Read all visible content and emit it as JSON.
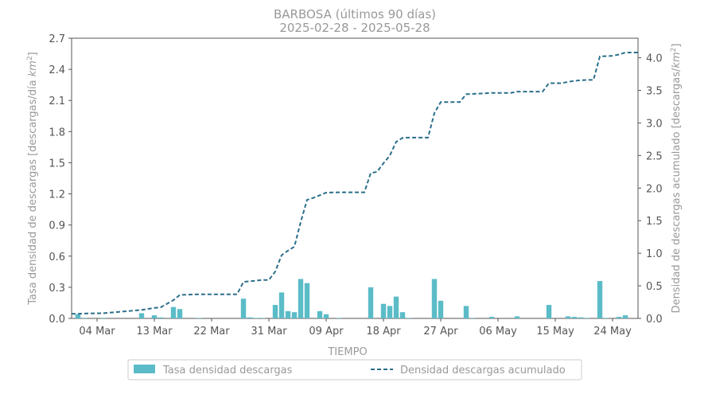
{
  "chart_data": {
    "type": "bar+line",
    "title": "BARBOSA (últimos 90 días)",
    "subtitle": "2025-02-28  -  2025-05-28",
    "xlabel": "TIEMPO",
    "ylabel_left": "Tasa densidad de descargas [descargas/día km$^2$]",
    "ylabel_left_text": "Tasa densidad de descargas [descargas/día ",
    "ylabel_left_unit": "km",
    "ylabel_right": "Densidad de descargas acumulado [descargas/km$^2$]",
    "ylabel_right_text": "Densidad de descargas acumulado [descargas/",
    "ylabel_right_unit": "km",
    "unit_exponent": "2",
    "ylabel_close": "]",
    "xlim": [
      "2025-02-28",
      "2025-05-28"
    ],
    "ylim_left": [
      0,
      2.7
    ],
    "ylim_right": [
      0,
      4.3
    ],
    "grid": false,
    "legend_position": "bottom-center",
    "x_tick_labels": [
      "04 Mar",
      "13 Mar",
      "22 Mar",
      "31 Mar",
      "09 Apr",
      "18 Apr",
      "27 Apr",
      "06 May",
      "15 May",
      "24 May"
    ],
    "x_tick_dates": [
      "2025-03-04",
      "2025-03-13",
      "2025-03-22",
      "2025-03-31",
      "2025-04-09",
      "2025-04-18",
      "2025-04-27",
      "2025-05-06",
      "2025-05-15",
      "2025-05-24"
    ],
    "y_left_ticks": [
      "0.0",
      "0.3",
      "0.6",
      "0.9",
      "1.2",
      "1.5",
      "1.8",
      "2.1",
      "2.4",
      "2.7"
    ],
    "y_right_ticks": [
      "0.0",
      "0.5",
      "1.0",
      "1.5",
      "2.0",
      "2.5",
      "3.0",
      "3.5",
      "4.0"
    ],
    "series": [
      {
        "name": "Tasa densidad descargas",
        "kind": "bar",
        "color": "#5bbcc8",
        "data": [
          [
            "2025-03-01",
            0.04
          ],
          [
            "2025-03-02",
            0.005
          ],
          [
            "2025-03-05",
            0.005
          ],
          [
            "2025-03-11",
            0.05
          ],
          [
            "2025-03-13",
            0.03
          ],
          [
            "2025-03-14",
            0.01
          ],
          [
            "2025-03-16",
            0.11
          ],
          [
            "2025-03-17",
            0.09
          ],
          [
            "2025-03-20",
            0.005
          ],
          [
            "2025-03-27",
            0.19
          ],
          [
            "2025-03-28",
            0.01
          ],
          [
            "2025-03-29",
            0.005
          ],
          [
            "2025-03-30",
            0.005
          ],
          [
            "2025-04-01",
            0.13
          ],
          [
            "2025-04-02",
            0.25
          ],
          [
            "2025-04-03",
            0.07
          ],
          [
            "2025-04-04",
            0.06
          ],
          [
            "2025-04-05",
            0.38
          ],
          [
            "2025-04-06",
            0.34
          ],
          [
            "2025-04-08",
            0.07
          ],
          [
            "2025-04-09",
            0.04
          ],
          [
            "2025-04-11",
            0.005
          ],
          [
            "2025-04-16",
            0.3
          ],
          [
            "2025-04-18",
            0.14
          ],
          [
            "2025-04-19",
            0.12
          ],
          [
            "2025-04-20",
            0.21
          ],
          [
            "2025-04-21",
            0.06
          ],
          [
            "2025-04-22",
            0.005
          ],
          [
            "2025-04-26",
            0.38
          ],
          [
            "2025-04-27",
            0.17
          ],
          [
            "2025-05-01",
            0.12
          ],
          [
            "2025-05-02",
            0.005
          ],
          [
            "2025-05-05",
            0.015
          ],
          [
            "2025-05-09",
            0.02
          ],
          [
            "2025-05-14",
            0.13
          ],
          [
            "2025-05-17",
            0.02
          ],
          [
            "2025-05-18",
            0.015
          ],
          [
            "2025-05-19",
            0.01
          ],
          [
            "2025-05-20",
            0.005
          ],
          [
            "2025-05-22",
            0.36
          ],
          [
            "2025-05-23",
            0.005
          ],
          [
            "2025-05-25",
            0.015
          ],
          [
            "2025-05-26",
            0.03
          ]
        ]
      },
      {
        "name": "Densidad descargas acumulado",
        "kind": "line",
        "style": "dashed",
        "color": "#2b6f8a",
        "data": [
          [
            "2025-02-28",
            0.07
          ],
          [
            "2025-03-01",
            0.07
          ],
          [
            "2025-03-02",
            0.075
          ],
          [
            "2025-03-05",
            0.08
          ],
          [
            "2025-03-11",
            0.13
          ],
          [
            "2025-03-13",
            0.16
          ],
          [
            "2025-03-14",
            0.17
          ],
          [
            "2025-03-16",
            0.28
          ],
          [
            "2025-03-17",
            0.36
          ],
          [
            "2025-03-20",
            0.37
          ],
          [
            "2025-03-26",
            0.37
          ],
          [
            "2025-03-27",
            0.56
          ],
          [
            "2025-03-28",
            0.57
          ],
          [
            "2025-03-29",
            0.58
          ],
          [
            "2025-03-30",
            0.59
          ],
          [
            "2025-03-31",
            0.59
          ],
          [
            "2025-04-01",
            0.72
          ],
          [
            "2025-04-02",
            0.97
          ],
          [
            "2025-04-03",
            1.04
          ],
          [
            "2025-04-04",
            1.1
          ],
          [
            "2025-04-05",
            1.48
          ],
          [
            "2025-04-06",
            1.82
          ],
          [
            "2025-04-07",
            1.85
          ],
          [
            "2025-04-08",
            1.89
          ],
          [
            "2025-04-09",
            1.93
          ],
          [
            "2025-04-11",
            1.935
          ],
          [
            "2025-04-15",
            1.935
          ],
          [
            "2025-04-16",
            2.23
          ],
          [
            "2025-04-17",
            2.25
          ],
          [
            "2025-04-18",
            2.38
          ],
          [
            "2025-04-19",
            2.5
          ],
          [
            "2025-04-20",
            2.71
          ],
          [
            "2025-04-21",
            2.77
          ],
          [
            "2025-04-22",
            2.775
          ],
          [
            "2025-04-25",
            2.775
          ],
          [
            "2025-04-26",
            3.15
          ],
          [
            "2025-04-27",
            3.32
          ],
          [
            "2025-04-30",
            3.32
          ],
          [
            "2025-05-01",
            3.44
          ],
          [
            "2025-05-02",
            3.445
          ],
          [
            "2025-05-05",
            3.46
          ],
          [
            "2025-05-08",
            3.46
          ],
          [
            "2025-05-09",
            3.48
          ],
          [
            "2025-05-13",
            3.48
          ],
          [
            "2025-05-14",
            3.61
          ],
          [
            "2025-05-16",
            3.61
          ],
          [
            "2025-05-17",
            3.63
          ],
          [
            "2025-05-18",
            3.645
          ],
          [
            "2025-05-19",
            3.655
          ],
          [
            "2025-05-20",
            3.66
          ],
          [
            "2025-05-21",
            3.66
          ],
          [
            "2025-05-22",
            4.02
          ],
          [
            "2025-05-24",
            4.03
          ],
          [
            "2025-05-25",
            4.05
          ],
          [
            "2025-05-26",
            4.08
          ],
          [
            "2025-05-28",
            4.08
          ]
        ]
      }
    ]
  }
}
